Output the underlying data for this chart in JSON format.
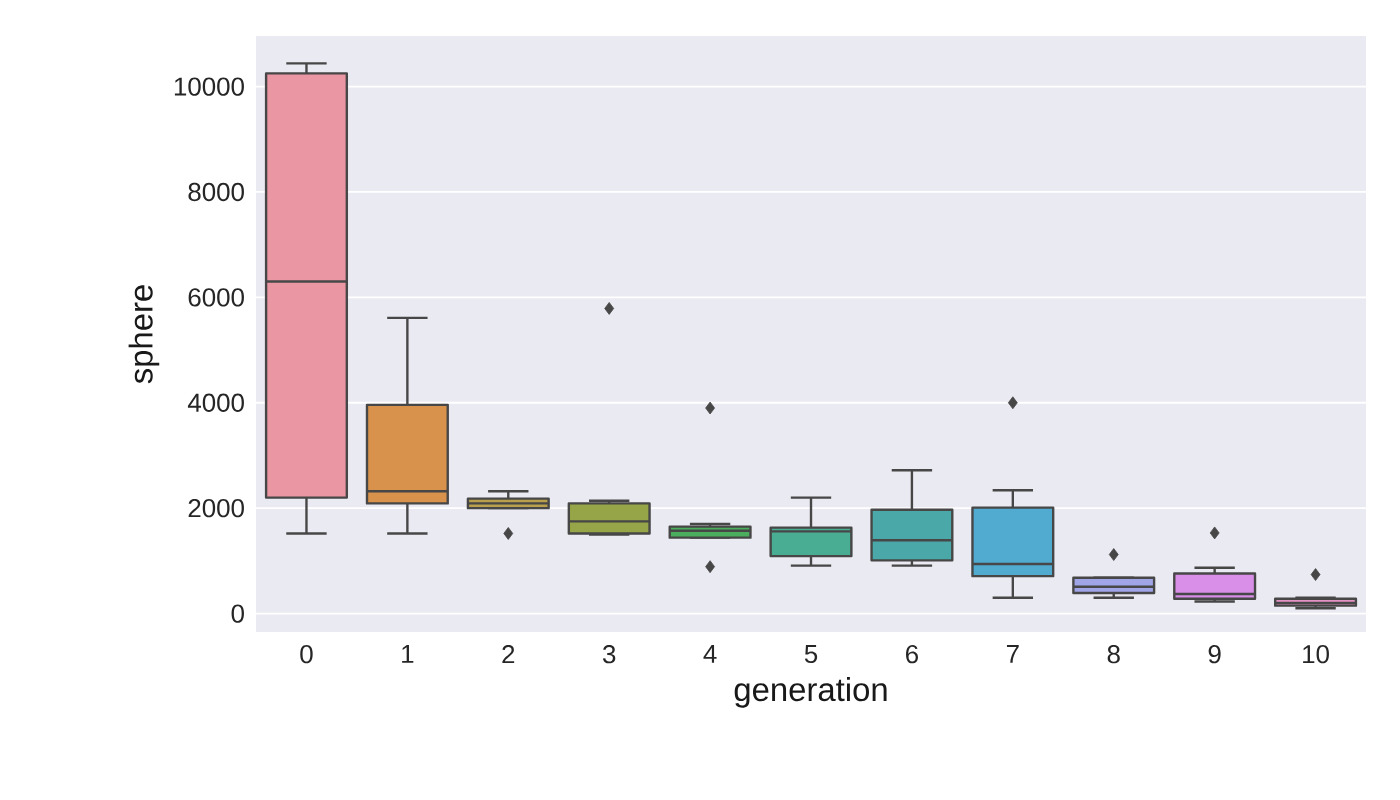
{
  "chart_data": {
    "type": "box",
    "xlabel": "generation",
    "ylabel": "sphere",
    "categories": [
      "0",
      "1",
      "2",
      "3",
      "4",
      "5",
      "6",
      "7",
      "8",
      "9",
      "10"
    ],
    "colors": [
      "#ea96a3",
      "#d9924c",
      "#b9a04c",
      "#95a547",
      "#4aae5e",
      "#48ad92",
      "#4aa9a8",
      "#51aad0",
      "#a0a5e8",
      "#d98ee8",
      "#e592c4"
    ],
    "boxes": [
      {
        "low": 1520,
        "q1": 2200,
        "median": 6300,
        "q3": 10250,
        "high": 10440
      },
      {
        "low": 1520,
        "q1": 2090,
        "median": 2320,
        "q3": 3960,
        "high": 5610
      },
      {
        "low": 2000,
        "q1": 2000,
        "median": 2090,
        "q3": 2180,
        "high": 2320,
        "outliers": [
          1520
        ]
      },
      {
        "low": 1500,
        "q1": 1520,
        "median": 1750,
        "q3": 2090,
        "high": 2140,
        "outliers": [
          5790
        ]
      },
      {
        "low": 1440,
        "q1": 1440,
        "median": 1570,
        "q3": 1650,
        "high": 1700,
        "outliers": [
          3900,
          890
        ]
      },
      {
        "low": 910,
        "q1": 1090,
        "median": 1560,
        "q3": 1630,
        "high": 2200
      },
      {
        "low": 910,
        "q1": 1010,
        "median": 1390,
        "q3": 1970,
        "high": 2720
      },
      {
        "low": 300,
        "q1": 710,
        "median": 940,
        "q3": 2010,
        "high": 2340,
        "outliers": [
          4000
        ]
      },
      {
        "low": 300,
        "q1": 390,
        "median": 510,
        "q3": 680,
        "high": 680,
        "outliers": [
          1120
        ]
      },
      {
        "low": 230,
        "q1": 280,
        "median": 370,
        "q3": 760,
        "high": 870,
        "outliers": [
          1530
        ]
      },
      {
        "low": 100,
        "q1": 150,
        "median": 200,
        "q3": 280,
        "high": 300,
        "outliers": [
          740
        ]
      }
    ],
    "ylim": [
      -350,
      10960
    ],
    "yticks": [
      0,
      2000,
      4000,
      6000,
      8000,
      10000
    ],
    "grid": "y"
  }
}
